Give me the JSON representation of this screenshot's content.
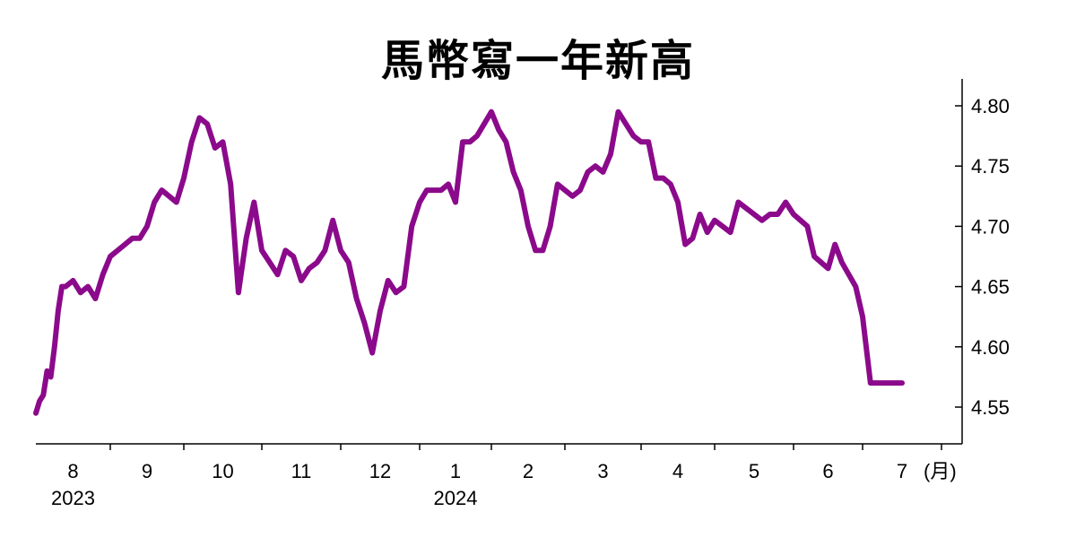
{
  "chart_data": {
    "type": "line",
    "title": "馬幣寫一年新高",
    "unit_label": "(月)",
    "color": "#8B0A8B",
    "ylim": [
      4.52,
      4.82
    ],
    "yticks": [
      "4.80",
      "4.75",
      "4.70",
      "4.65",
      "4.60",
      "4.55"
    ],
    "y_axis_position": "right",
    "grid": false,
    "month_labels": [
      "8",
      "9",
      "10",
      "11",
      "12",
      "1",
      "2",
      "3",
      "4",
      "5",
      "6",
      "7"
    ],
    "year_labels": [
      {
        "text": "2023",
        "month_index": 0
      },
      {
        "text": "2024",
        "month_index": 5
      }
    ],
    "series": [
      {
        "x": [
          0,
          0.05,
          0.1,
          0.15,
          0.2,
          0.25,
          0.3,
          0.35,
          0.4,
          0.5,
          0.6,
          0.7,
          0.8,
          0.9,
          1.0,
          1.1,
          1.2,
          1.3,
          1.4,
          1.5,
          1.6,
          1.7,
          1.8,
          1.9,
          2.0,
          2.1,
          2.2,
          2.3,
          2.4,
          2.5,
          2.6,
          2.7,
          2.8,
          2.9,
          3.0,
          3.1,
          3.2,
          3.3,
          3.4,
          3.5,
          3.6,
          3.7,
          3.8,
          3.9,
          4.0,
          4.1,
          4.2,
          4.3,
          4.4,
          4.5,
          4.6,
          4.7,
          4.8,
          4.9,
          5.0,
          5.1,
          5.2,
          5.3,
          5.4,
          5.5,
          5.6,
          5.7,
          5.8,
          5.9,
          6.0,
          6.1,
          6.2,
          6.3,
          6.4,
          6.5,
          6.6,
          6.7,
          6.8,
          6.9,
          7.0,
          7.1,
          7.2,
          7.3,
          7.4,
          7.5,
          7.6,
          7.7,
          7.8,
          7.9,
          8.0,
          8.1,
          8.2,
          8.3,
          8.4,
          8.5,
          8.6,
          8.7,
          8.8,
          8.9,
          9.0,
          9.1,
          9.2,
          9.3,
          9.4,
          9.5,
          9.6,
          9.7,
          9.8,
          9.9,
          10.0,
          10.1,
          10.2,
          10.3,
          10.4,
          10.5,
          10.6,
          10.7,
          10.8,
          10.9,
          11.0,
          11.1,
          11.2,
          11.3,
          11.4,
          11.5
        ],
        "values": [
          4.545,
          4.555,
          4.56,
          4.58,
          4.575,
          4.6,
          4.63,
          4.65,
          4.65,
          4.655,
          4.645,
          4.65,
          4.64,
          4.66,
          4.675,
          4.68,
          4.685,
          4.69,
          4.69,
          4.7,
          4.72,
          4.73,
          4.725,
          4.72,
          4.74,
          4.77,
          4.79,
          4.785,
          4.765,
          4.77,
          4.735,
          4.645,
          4.69,
          4.72,
          4.68,
          4.67,
          4.66,
          4.68,
          4.675,
          4.655,
          4.665,
          4.67,
          4.68,
          4.705,
          4.68,
          4.67,
          4.64,
          4.62,
          4.595,
          4.63,
          4.655,
          4.645,
          4.65,
          4.7,
          4.72,
          4.73,
          4.73,
          4.73,
          4.735,
          4.72,
          4.77,
          4.77,
          4.775,
          4.785,
          4.795,
          4.78,
          4.77,
          4.745,
          4.73,
          4.7,
          4.68,
          4.68,
          4.7,
          4.735,
          4.73,
          4.725,
          4.73,
          4.745,
          4.75,
          4.745,
          4.76,
          4.795,
          4.785,
          4.775,
          4.77,
          4.77,
          4.74,
          4.74,
          4.735,
          4.72,
          4.685,
          4.69,
          4.71,
          4.695,
          4.705,
          4.7,
          4.695,
          4.72,
          4.715,
          4.71,
          4.705,
          4.71,
          4.71,
          4.72,
          4.71,
          4.705,
          4.7,
          4.675,
          4.67,
          4.665,
          4.685,
          4.67,
          4.66,
          4.65,
          4.625,
          4.57,
          4.57,
          4.57,
          4.57,
          4.57
        ]
      }
    ]
  }
}
